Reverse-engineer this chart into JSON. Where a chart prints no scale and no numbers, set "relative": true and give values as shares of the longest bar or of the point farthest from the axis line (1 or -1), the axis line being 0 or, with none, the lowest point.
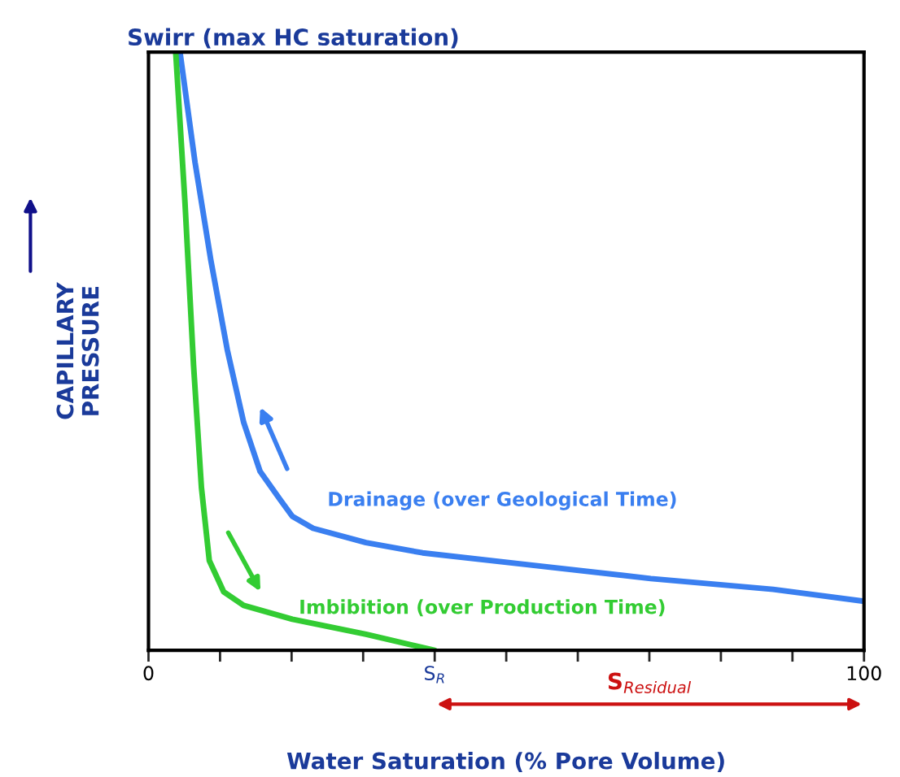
{
  "chart_data": {
    "type": "line",
    "relative": true,
    "title": "Swirr (max HC saturation)",
    "xlabel": "Water Saturation (% Pore Volume)",
    "ylabel": "CAPILLARY\nPRESSURE",
    "xlim": [
      0,
      100
    ],
    "xticks": [
      0,
      {
        "value": 10,
        "label": null
      },
      {
        "value": 20,
        "label": null
      },
      {
        "value": 30,
        "label": null
      },
      {
        "value": 40,
        "label": "S$_{R}$"
      },
      {
        "value": 50,
        "label": null
      },
      {
        "value": 60,
        "label": null
      },
      {
        "value": 70,
        "label": null
      },
      {
        "value": 80,
        "label": null
      },
      {
        "value": 90,
        "label": null
      },
      100
    ],
    "series": [
      {
        "name": "Drainage (over Geological Time)",
        "color": "#3a7ff0",
        "x": [
          4.4,
          6.5,
          8.7,
          11.0,
          13.3,
          15.6,
          18.4,
          20.1,
          23.0,
          30.4,
          38.3,
          53.1,
          70.2,
          87.3,
          100
        ],
        "values": [
          1.0,
          0.816,
          0.653,
          0.503,
          0.381,
          0.299,
          0.252,
          0.224,
          0.204,
          0.18,
          0.163,
          0.143,
          0.12,
          0.102,
          0.082
        ]
      },
      {
        "name": "Imbibition (over Production Time)",
        "color": "#33cc33",
        "x": [
          3.8,
          5.1,
          6.3,
          7.4,
          8.5,
          10.5,
          13.3,
          20.1,
          30.4,
          40
        ],
        "values": [
          1.0,
          0.748,
          0.476,
          0.272,
          0.15,
          0.098,
          0.075,
          0.052,
          0.027,
          0
        ]
      }
    ],
    "annotations": [
      "S$_{Residual}$"
    ],
    "legend": false,
    "grid": false
  }
}
